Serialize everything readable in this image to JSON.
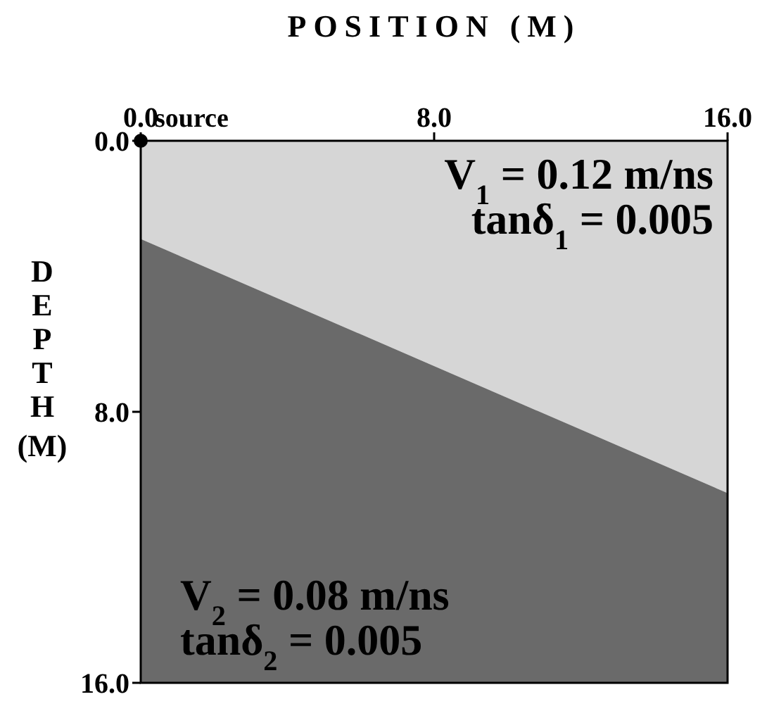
{
  "chart_data": {
    "type": "area",
    "stacked": true,
    "xlabel": "POSITION (M)",
    "ylabel": "DEPTH (M)",
    "x": [
      0,
      16
    ],
    "xlim": [
      0,
      16
    ],
    "xticks": [
      {
        "value": 0,
        "label": "0.0"
      },
      {
        "value": 8,
        "label": "8.0"
      },
      {
        "value": 16,
        "label": "16.0"
      }
    ],
    "ylim": [
      16,
      0
    ],
    "yticks": [
      {
        "value": 0,
        "label": "0.0"
      },
      {
        "value": 8,
        "label": "8.0"
      },
      {
        "value": 16,
        "label": "16.0"
      }
    ],
    "series": [
      {
        "color": "#d6d6d6",
        "values": [
          2.9,
          10.4
        ]
      },
      {
        "color": "#6a6a6a",
        "values": [
          13.1,
          5.6
        ]
      },
      {
        "type": "scatter",
        "color": "#000000",
        "x": [
          0
        ],
        "values": [
          0
        ],
        "marker": "circle"
      }
    ],
    "annotations": [
      "V$_{1}$ = 0.12 m/ns",
      "tanδ$_{1}$ = 0.005",
      "V$_{2}$ = 0.08 m/ns",
      "tanδ$_{2}$ = 0.005",
      {
        "text": "source",
        "x": 0,
        "y": 0
      }
    ]
  }
}
